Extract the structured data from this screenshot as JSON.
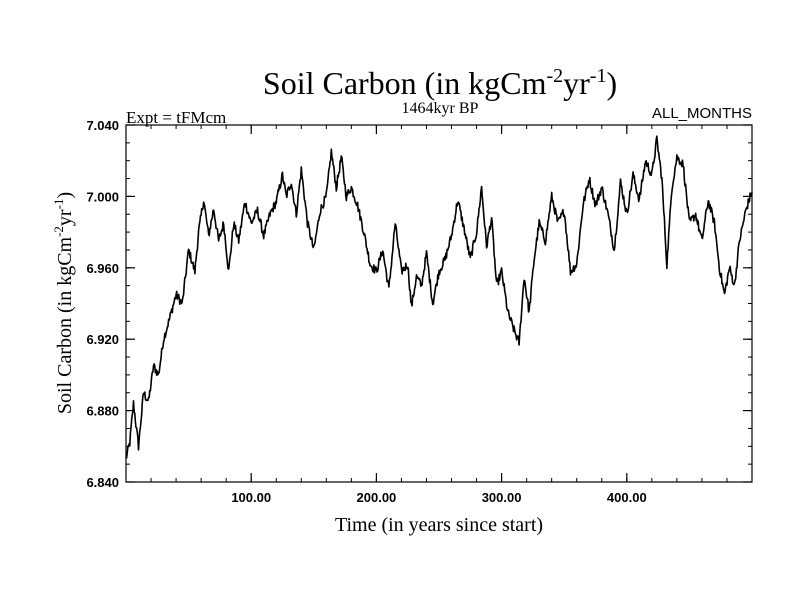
{
  "chart_data": {
    "type": "line",
    "title": {
      "main": "Soil Carbon (in kgCm",
      "sup1": "-2",
      "mid": "yr",
      "sup2": "-1",
      "end": ")"
    },
    "header": {
      "left": "Expt = tFMcm",
      "center": "1464kyr BP",
      "right": "ALL_MONTHS"
    },
    "xlabel": "Time (in years since start)",
    "ylabel": {
      "main": "Soil Carbon (in kgCm",
      "sup1": "-2",
      "mid": "yr",
      "sup2": "-1",
      "end": ")"
    },
    "xlim": [
      0,
      500
    ],
    "ylim": [
      6.84,
      7.04
    ],
    "x_ticks": [
      100,
      200,
      300,
      400
    ],
    "x_tick_labels": [
      "100.00",
      "200.00",
      "300.00",
      "400.00"
    ],
    "y_ticks": [
      6.84,
      6.88,
      6.92,
      6.96,
      7.0,
      7.04
    ],
    "y_tick_labels": [
      "6.840",
      "6.880",
      "6.920",
      "6.960",
      "7.000",
      "7.040"
    ],
    "series": [
      {
        "name": "Soil Carbon",
        "color": "#000000",
        "x": [
          0,
          3,
          6,
          10,
          14,
          18,
          22,
          26,
          30,
          35,
          40,
          45,
          50,
          55,
          58,
          62,
          66,
          70,
          74,
          78,
          82,
          86,
          90,
          95,
          100,
          105,
          110,
          115,
          120,
          125,
          128,
          132,
          136,
          140,
          145,
          150,
          155,
          160,
          164,
          168,
          172,
          176,
          180,
          185,
          190,
          195,
          200,
          205,
          210,
          215,
          220,
          225,
          228,
          232,
          236,
          240,
          245,
          250,
          255,
          260,
          265,
          270,
          275,
          280,
          284,
          288,
          292,
          296,
          300,
          305,
          310,
          314,
          318,
          322,
          326,
          330,
          335,
          340,
          345,
          350,
          355,
          360,
          365,
          370,
          375,
          380,
          385,
          390,
          395,
          400,
          405,
          410,
          415,
          420,
          424,
          428,
          432,
          436,
          440,
          445,
          450,
          455,
          460,
          465,
          470,
          474,
          478,
          482,
          486,
          490,
          495,
          500
        ],
        "values": [
          6.853,
          6.862,
          6.884,
          6.86,
          6.89,
          6.885,
          6.905,
          6.9,
          6.92,
          6.932,
          6.945,
          6.94,
          6.97,
          6.958,
          6.98,
          6.998,
          6.978,
          6.993,
          6.975,
          6.985,
          6.958,
          6.985,
          6.975,
          6.997,
          6.985,
          6.992,
          6.978,
          6.99,
          6.997,
          7.012,
          7.0,
          7.008,
          6.99,
          7.015,
          6.985,
          6.97,
          6.992,
          7.0,
          7.025,
          7.005,
          7.022,
          7.0,
          7.005,
          6.995,
          6.98,
          6.962,
          6.958,
          6.97,
          6.948,
          6.985,
          6.958,
          6.962,
          6.938,
          6.955,
          6.95,
          6.968,
          6.94,
          6.958,
          6.965,
          6.978,
          6.998,
          6.982,
          6.965,
          6.98,
          7.005,
          6.972,
          6.988,
          6.95,
          6.958,
          6.935,
          6.925,
          6.918,
          6.955,
          6.935,
          6.965,
          6.985,
          6.975,
          7.0,
          6.985,
          6.992,
          6.958,
          6.962,
          6.995,
          7.01,
          6.995,
          7.005,
          6.99,
          6.97,
          7.008,
          6.99,
          7.012,
          6.998,
          7.02,
          7.012,
          7.032,
          7.01,
          6.962,
          7.005,
          7.022,
          7.018,
          6.985,
          6.99,
          6.975,
          6.998,
          6.985,
          6.96,
          6.945,
          6.96,
          6.95,
          6.975,
          6.992,
          7.003
        ]
      }
    ],
    "grid": false,
    "legend": "none"
  }
}
